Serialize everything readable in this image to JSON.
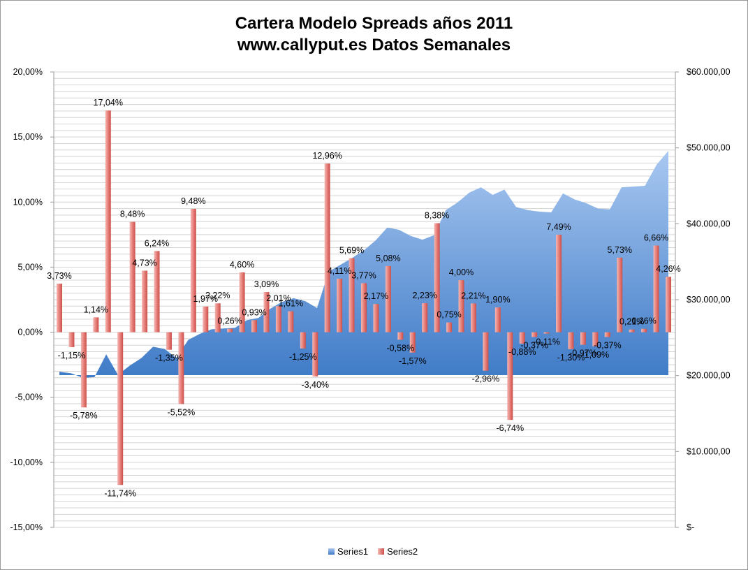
{
  "chart_data": {
    "type": "bar",
    "title": "Cartera Modelo Spreads años 2011",
    "subtitle": "www.callyput.es Datos Semanales",
    "y_left": {
      "ylim": [
        -15,
        20
      ],
      "ticks": [
        -15,
        -10,
        -5,
        0,
        5,
        10,
        15,
        20
      ],
      "tick_labels": [
        "-15,00%",
        "-10,00%",
        "-5,00%",
        "0,00%",
        "5,00%",
        "10,00%",
        "15,00%",
        "20,00%"
      ]
    },
    "y_right": {
      "ylim": [
        0,
        60000
      ],
      "ticks": [
        0,
        10000,
        20000,
        30000,
        40000,
        50000,
        60000
      ],
      "tick_labels": [
        "$-",
        "$10.000,00",
        "$20.000,00",
        "$30.000,00",
        "$40.000,00",
        "$50.000,00",
        "$60.000,00"
      ]
    },
    "grid": true,
    "legend_position": "bottom",
    "series": [
      {
        "name": "Series1",
        "type": "area",
        "axis": "right",
        "color": "#7aa6dc",
        "values": [
          20500,
          20300,
          19700,
          19800,
          22800,
          20100,
          21300,
          22300,
          23800,
          23500,
          22300,
          24700,
          25500,
          26100,
          26200,
          26300,
          27300,
          27600,
          28800,
          29700,
          30200,
          29800,
          28900,
          33700,
          34600,
          35500,
          36500,
          37800,
          39500,
          39200,
          38400,
          37900,
          38500,
          41800,
          42800,
          44100,
          44800,
          43800,
          44500,
          42200,
          41800,
          41600,
          41500,
          44000,
          43200,
          42700,
          42000,
          41900,
          44800,
          44900,
          45000,
          47800,
          49600
        ]
      },
      {
        "name": "Series2",
        "type": "bar",
        "axis": "left",
        "color": "#e05a5a",
        "values": [
          3.73,
          -1.15,
          -5.78,
          1.14,
          17.04,
          -11.74,
          8.48,
          4.73,
          6.24,
          -1.35,
          -5.52,
          9.48,
          1.97,
          2.22,
          0.26,
          4.6,
          0.93,
          3.09,
          2.01,
          1.61,
          -1.25,
          -3.4,
          12.96,
          4.11,
          5.69,
          3.77,
          2.17,
          5.08,
          -0.58,
          -1.57,
          2.23,
          8.38,
          0.75,
          4.0,
          2.21,
          -2.96,
          1.9,
          -6.74,
          -0.88,
          -0.37,
          -0.11,
          7.49,
          -1.3,
          -0.97,
          -1.09,
          -0.37,
          5.73,
          0.21,
          0.26,
          6.66,
          4.26
        ],
        "data_labels": [
          "3,73%",
          "-1,15%",
          "-5,78%",
          "1,14%",
          "17,04%",
          "-11,74%",
          "8,48%",
          "4,73%",
          "6,24%",
          "-1,35%",
          "-5,52%",
          "9,48%",
          "1,97%",
          "2,22%",
          "0,26%",
          "4,60%",
          "0,93%",
          "3,09%",
          "2,01%",
          "1,61%",
          "-1,25%",
          "-3,40%",
          "12,96%",
          "4,11%",
          "5,69%",
          "3,77%",
          "2,17%",
          "5,08%",
          "-0,58%",
          "-1,57%",
          "2,23%",
          "8,38%",
          "0,75%",
          "4,00%",
          "2,21%",
          "-2,96%",
          "1,90%",
          "-6,74%",
          "-0,88%",
          "-0,37%",
          "-0,11%",
          "7,49%",
          "-1,30%",
          "-0,97%",
          "-1,09%",
          "-0,37%",
          "5,73%",
          "0,21%",
          "0,26%",
          "6,66%",
          "4,26%"
        ]
      }
    ]
  }
}
